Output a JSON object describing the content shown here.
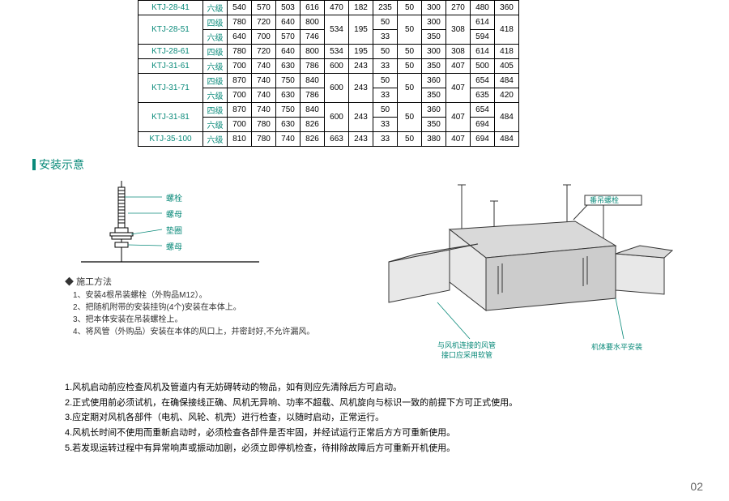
{
  "table": {
    "rows": [
      {
        "model": "KTJ-28-41",
        "grades": [
          {
            "g": "六级",
            "cells": [
              "540",
              "570",
              "503",
              "616",
              "470",
              "182",
              "235",
              "50",
              "300",
              "270",
              "480",
              "360"
            ]
          }
        ]
      },
      {
        "model": "KTJ-28-51",
        "grades": [
          {
            "g": "四级",
            "cells": [
              "780",
              "720",
              "640",
              "800",
              "534",
              "195",
              "50",
              "50",
              "300",
              "308",
              "614",
              "418"
            ]
          },
          {
            "g": "六级",
            "cells": [
              "640",
              "700",
              "570",
              "746",
              "",
              "",
              "33",
              "",
              "350",
              "",
              "594",
              ""
            ]
          }
        ],
        "merge": [
          4,
          5,
          7,
          9,
          11
        ]
      },
      {
        "model": "KTJ-28-61",
        "grades": [
          {
            "g": "四级",
            "cells": [
              "780",
              "720",
              "640",
              "800",
              "534",
              "195",
              "50",
              "50",
              "300",
              "308",
              "614",
              "418"
            ]
          }
        ]
      },
      {
        "model": "KTJ-31-61",
        "grades": [
          {
            "g": "六级",
            "cells": [
              "700",
              "740",
              "630",
              "786",
              "600",
              "243",
              "33",
              "50",
              "350",
              "407",
              "500",
              "405"
            ]
          }
        ]
      },
      {
        "model": "KTJ-31-71",
        "grades": [
          {
            "g": "四级",
            "cells": [
              "870",
              "740",
              "750",
              "840",
              "600",
              "243",
              "50",
              "50",
              "360",
              "407",
              "654",
              "484"
            ]
          },
          {
            "g": "六级",
            "cells": [
              "700",
              "740",
              "630",
              "786",
              "",
              "",
              "33",
              "",
              "350",
              "",
              "635",
              "420"
            ]
          }
        ],
        "merge": [
          4,
          5,
          7,
          9
        ]
      },
      {
        "model": "KTJ-31-81",
        "grades": [
          {
            "g": "四级",
            "cells": [
              "870",
              "740",
              "750",
              "840",
              "600",
              "243",
              "50",
              "50",
              "360",
              "407",
              "654",
              "484"
            ]
          },
          {
            "g": "六级",
            "cells": [
              "700",
              "780",
              "630",
              "826",
              "",
              "",
              "33",
              "",
              "350",
              "",
              "694",
              ""
            ]
          }
        ],
        "merge": [
          4,
          5,
          7,
          9,
          11
        ]
      },
      {
        "model": "KTJ-35-100",
        "grades": [
          {
            "g": "六级",
            "cells": [
              "810",
              "780",
              "740",
              "826",
              "663",
              "243",
              "33",
              "50",
              "380",
              "407",
              "694",
              "484"
            ]
          }
        ]
      }
    ],
    "colors": {
      "model": "#0a8a7a",
      "grade": "#0a8a7a",
      "border": "#000000",
      "bg": "#ffffff"
    }
  },
  "section_title": "安装示意",
  "bolt": {
    "labels": [
      "螺栓",
      "螺母",
      "垫圈",
      "螺母"
    ],
    "label_color": "#0a8a7a",
    "stroke": "#000000"
  },
  "method": {
    "heading": "施工方法",
    "items": [
      "1、安装4根吊装螺栓（外购品M12）。",
      "2、把随机附带的安装挂钩(4个)安装在本体上。",
      "3、把本体安装在吊装螺栓上。",
      "4、将风管（外购品）安装在本体的风口上，并密封好,不允许漏风。"
    ]
  },
  "duct_diagram": {
    "label_top": "番吊螺栓",
    "label_left_1": "与风机连接的风管",
    "label_left_2": "接口应采用软管",
    "label_right": "机体要水平安装",
    "fill": "#d9d9d9",
    "stroke": "#333333",
    "label_color": "#0a8a7a"
  },
  "notes": [
    "1.风机启动前应检查风机及管道内有无妨碍转动的物品，如有则应先清除后方可启动。",
    "2.正式使用前必须试机，在确保接线正确、风机无异响、功率不超载、风机旋向与标识一致的前提下方可正式使用。",
    "3.应定期对风机各部件（电机、风轮、机壳）进行检查，以随时启动，正常运行。",
    "4.风机长时间不使用而重新启动时，必须检查各部件是否牢固，并经试运行正常后方方可重新使用。",
    "5.若发现运转过程中有异常响声或振动加剧，必须立即停机检查，待排除故障后方可重新开机使用。"
  ],
  "page_number": "02"
}
